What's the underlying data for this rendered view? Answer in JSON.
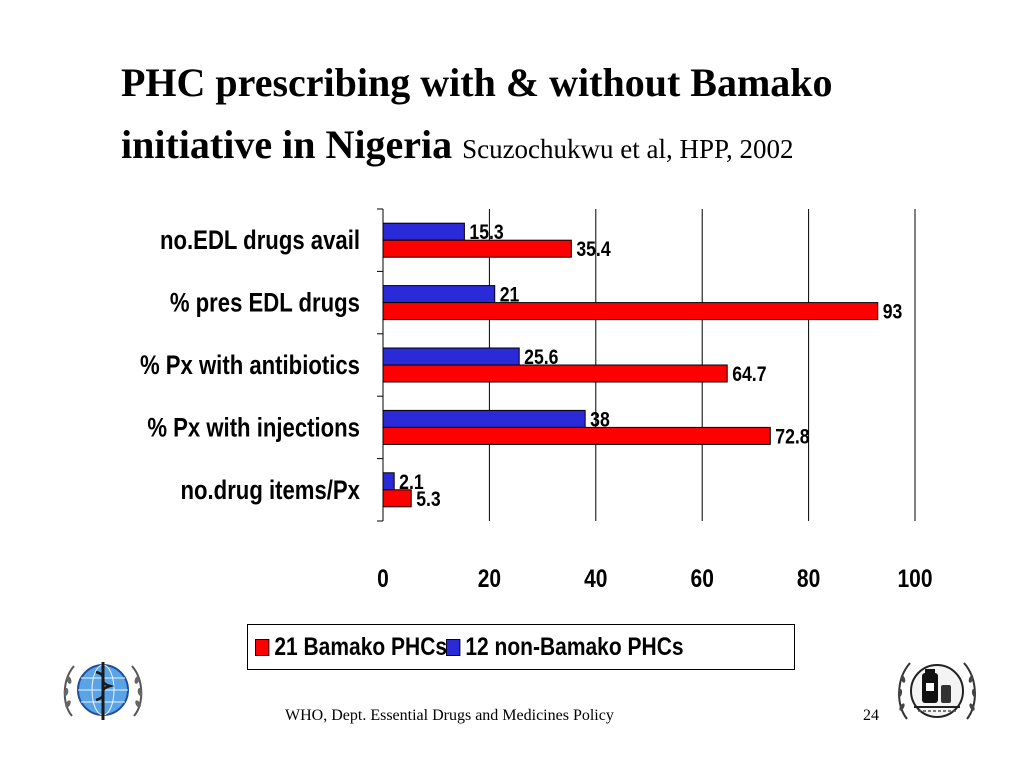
{
  "slide": {
    "title_main": "PHC prescribing with & without Bamako initiative in Nigeria",
    "title_citation": "Scuzochukwu et al, HPP, 2002",
    "footer_text": "WHO, Dept. Essential Drugs and Medicines Policy",
    "page_number": "24"
  },
  "legend": {
    "items": [
      {
        "label": "21 Bamako PHCs",
        "color": "#ff0000"
      },
      {
        "label": "12 non-Bamako PHCs",
        "color": "#2a2ad8"
      }
    ]
  },
  "logos": {
    "left": "who-emblem-icon",
    "right": "edm-program-emblem-icon"
  },
  "chart_data": {
    "type": "bar",
    "orientation": "horizontal",
    "categories": [
      "no.EDL drugs avail",
      "% pres EDL drugs",
      "% Px with antibiotics",
      "% Px with injections",
      "no.drug items/Px"
    ],
    "series": [
      {
        "name": "21 Bamako PHCs",
        "color": "#ff0000",
        "values": [
          35.4,
          93,
          64.7,
          72.8,
          5.3
        ],
        "labels": [
          "35.4",
          "93",
          "64.7",
          "72.8",
          "5.3"
        ]
      },
      {
        "name": "12 non-Bamako PHCs",
        "color": "#2a2ad8",
        "values": [
          15.3,
          21,
          25.6,
          38,
          2.1
        ],
        "labels": [
          "15.3",
          "21",
          "25.6",
          "38",
          "2.1"
        ]
      }
    ],
    "xlim": [
      0,
      100
    ],
    "xticks": [
      0,
      20,
      40,
      60,
      80,
      100
    ],
    "xtick_labels": [
      "0",
      "20",
      "40",
      "60",
      "80",
      "100"
    ],
    "grid": "vertical",
    "legend_position": "bottom"
  }
}
